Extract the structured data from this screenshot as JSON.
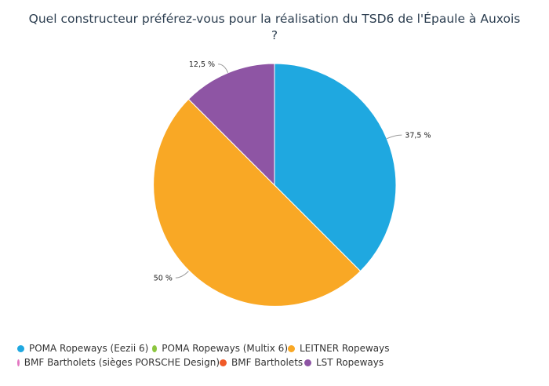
{
  "chart_data": {
    "type": "pie",
    "title": "Quel constructeur préférez-vous pour la réalisation du TSD6 de l'Épaule à Auxois ?",
    "title_lines": [
      "Quel constructeur préférez-vous pour la réalisation du TSD6 de l'Épaule à Auxois",
      "?"
    ],
    "categories": [
      "POMA Ropeways (Eezii 6)",
      "POMA Ropeways (Multix 6)",
      "LEITNER Ropeways",
      "BMF Bartholets (sièges PORSCHE Design)",
      "BMF Bartholets",
      "LST Ropeways"
    ],
    "values": [
      37.5,
      0,
      50,
      0,
      0,
      12.5
    ],
    "value_labels": [
      "37,5 %",
      "",
      "50 %",
      "",
      "",
      "12,5 %"
    ],
    "colors": [
      "#1fa8e0",
      "#8cc63f",
      "#f9a825",
      "#e377c2",
      "#f05a28",
      "#8e55a4"
    ],
    "legend_position": "bottom"
  }
}
